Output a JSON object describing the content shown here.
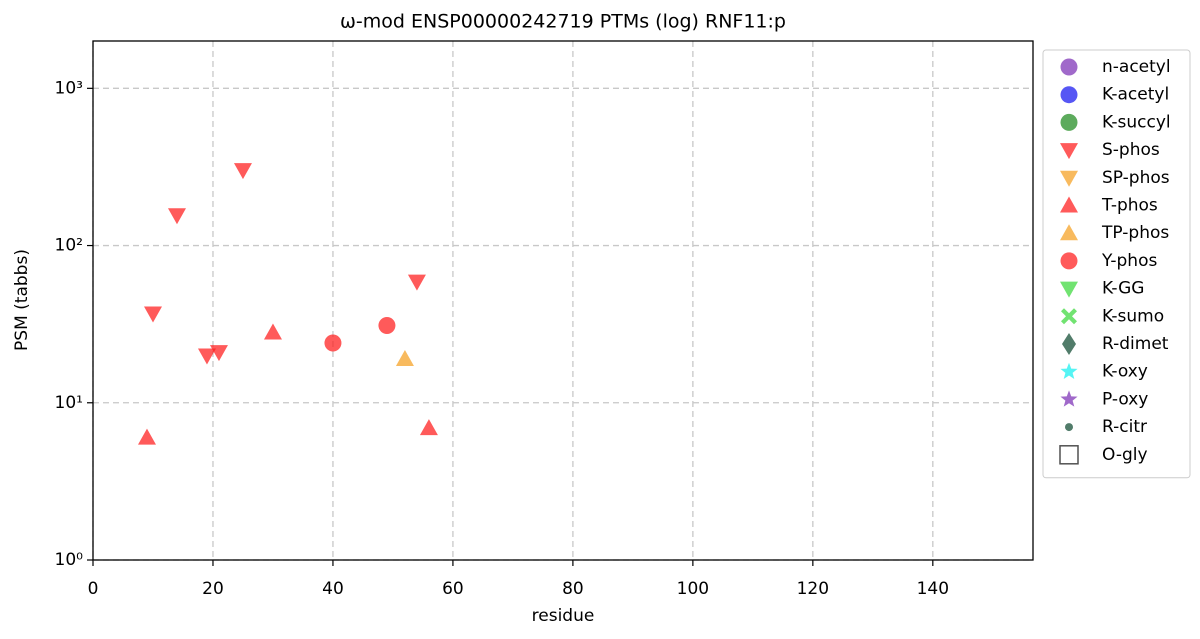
{
  "chart_data": {
    "type": "scatter",
    "title": "ω-mod ENSP00000242719 PTMs (log) RNF11:p",
    "x_label": "residue",
    "y_label": "PSM (tabbs)",
    "xlim": [
      0,
      156.7
    ],
    "xticks": [
      0,
      20,
      40,
      60,
      80,
      100,
      120,
      140
    ],
    "ylim": [
      1,
      2000
    ],
    "y_scale": "log",
    "yticks": [
      {
        "value": 1,
        "label": "10⁰"
      },
      {
        "value": 10,
        "label": "10¹"
      },
      {
        "value": 100,
        "label": "10²"
      },
      {
        "value": 1000,
        "label": "10³"
      }
    ],
    "grid": true,
    "legend": "outside right",
    "series": [
      {
        "name": "n-acetyl",
        "color": "#7b2fb5",
        "marker": "circle",
        "x": [],
        "values": []
      },
      {
        "name": "K-acetyl",
        "color": "#1515f0",
        "marker": "circle",
        "x": [],
        "values": []
      },
      {
        "name": "K-succyl",
        "color": "#1e8a1e",
        "marker": "circle",
        "x": [],
        "values": []
      },
      {
        "name": "S-phos",
        "color": "#ff1a1a",
        "marker": "triangle-down",
        "x": [
          10,
          14,
          25,
          19,
          21,
          54
        ],
        "values": [
          37,
          156,
          302,
          20,
          21,
          59
        ]
      },
      {
        "name": "SP-phos",
        "color": "#f5a020",
        "marker": "triangle-down",
        "x": [],
        "values": []
      },
      {
        "name": "T-phos",
        "color": "#ff1a1a",
        "marker": "triangle-up",
        "x": [
          9,
          30,
          56
        ],
        "values": [
          6,
          28,
          6.9
        ]
      },
      {
        "name": "TP-phos",
        "color": "#f5a020",
        "marker": "triangle-up",
        "x": [
          52
        ],
        "values": [
          19
        ]
      },
      {
        "name": "Y-phos",
        "color": "#ff1a1a",
        "marker": "circle",
        "x": [
          40,
          49
        ],
        "values": [
          24,
          31
        ]
      },
      {
        "name": "K-GG",
        "color": "#3ad83a",
        "marker": "triangle-down",
        "x": [],
        "values": []
      },
      {
        "name": "K-sumo",
        "color": "#3ad83a",
        "marker": "x",
        "x": [],
        "values": []
      },
      {
        "name": "R-dimet",
        "color": "#0e4a30",
        "marker": "diamond",
        "x": [],
        "values": []
      },
      {
        "name": "K-oxy",
        "color": "#14f0f0",
        "marker": "star",
        "x": [],
        "values": []
      },
      {
        "name": "P-oxy",
        "color": "#7b2fb5",
        "marker": "star",
        "x": [],
        "values": []
      },
      {
        "name": "R-citr",
        "color": "#0e4a30",
        "marker": "dot",
        "x": [],
        "values": []
      },
      {
        "name": "O-gly",
        "color": "#333333",
        "marker": "square",
        "x": [],
        "values": []
      }
    ]
  }
}
